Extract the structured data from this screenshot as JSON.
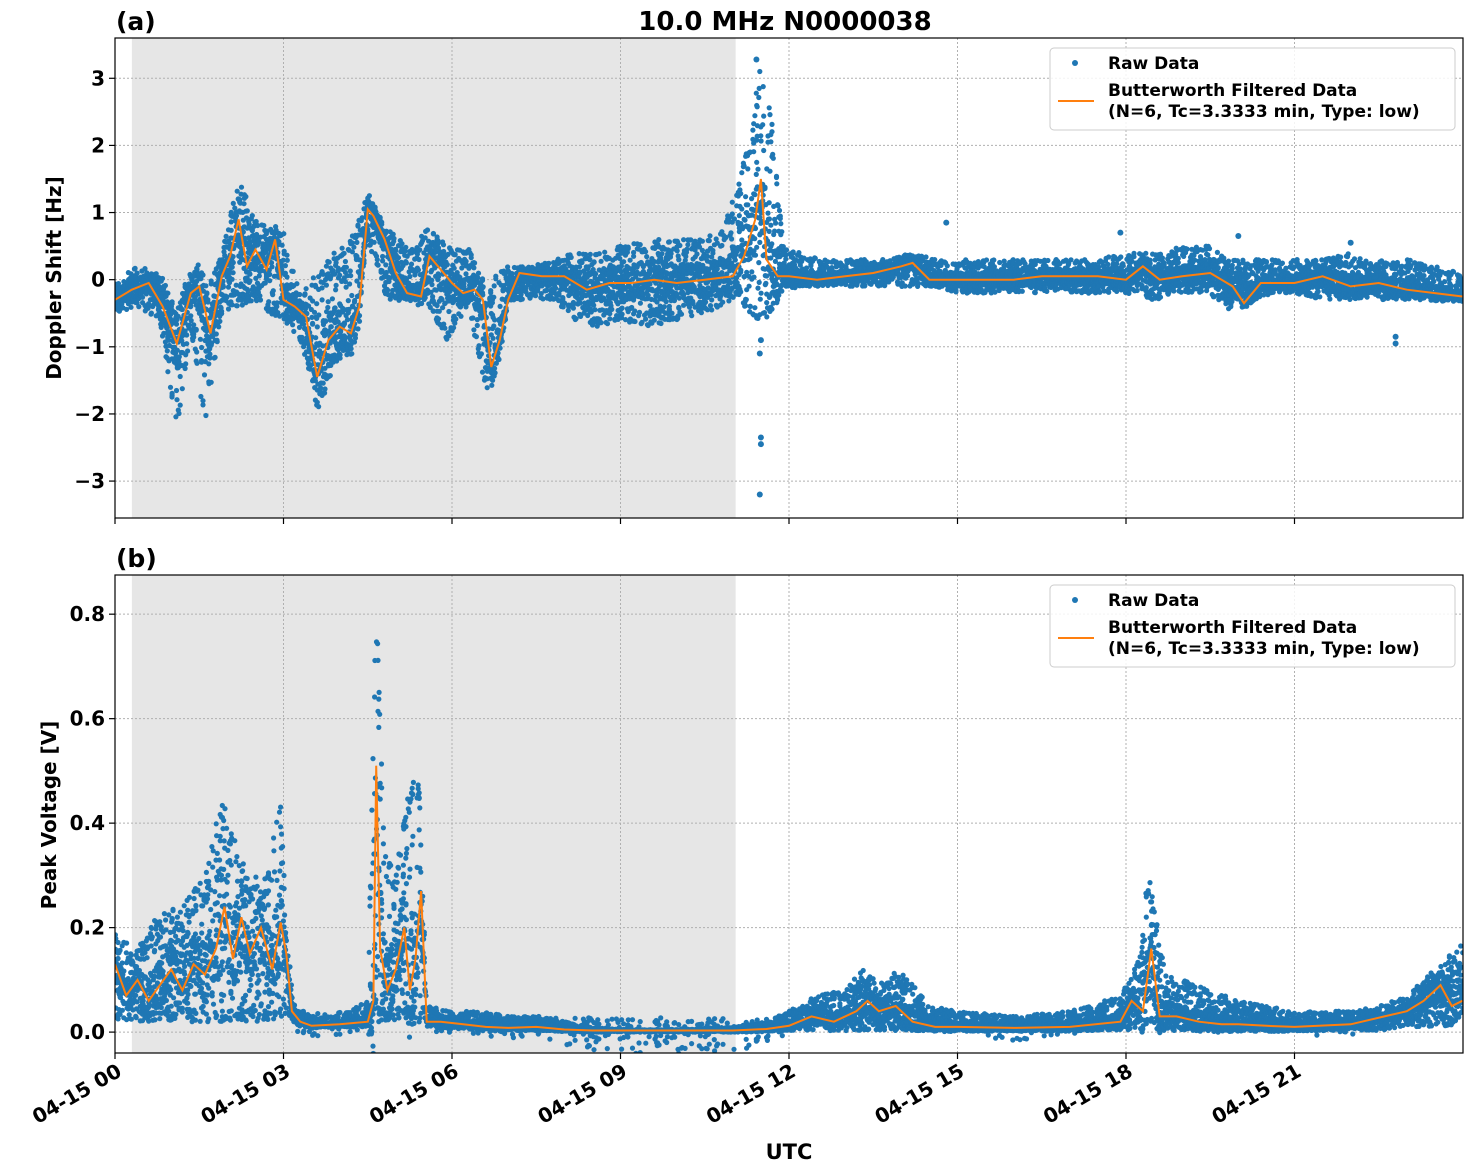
{
  "figure": {
    "title": "10.0 MHz N0000038",
    "xlabel": "UTC",
    "colors": {
      "raw": "#1f77b4",
      "filtered": "#ff7f0e",
      "shade": "#e6e6e6",
      "grid": "#b0b0b0"
    }
  },
  "chart_data": [
    {
      "type": "scatter",
      "panel_label": "(a)",
      "title": "10.0 MHz N0000038",
      "xlabel": "",
      "ylabel": "Doppler Shift [Hz]",
      "xlim": [
        0,
        24
      ],
      "ylim": [
        -3.55,
        3.6
      ],
      "y_ticks": [
        3,
        2,
        1,
        0,
        -1,
        -2,
        -3
      ],
      "y_tick_labels": [
        "3",
        "2",
        "1",
        "0",
        "−1",
        "−2",
        "−3"
      ],
      "grid": true,
      "shaded_interval_hours": [
        0.3,
        11.05
      ],
      "legend": {
        "position": "top-right",
        "entries": [
          "Raw Data",
          "Butterworth Filtered Data",
          "(N=6, Tc=3.3333 min, Type: low)"
        ]
      },
      "series": [
        {
          "name": "Raw Data",
          "kind": "scatter-band",
          "x": [
            0,
            0.4,
            0.8,
            1.1,
            1.35,
            1.6,
            1.9,
            2.2,
            2.5,
            2.7,
            3.0,
            3.3,
            3.6,
            3.9,
            4.2,
            4.5,
            4.8,
            5.0,
            5.3,
            5.6,
            5.9,
            6.3,
            6.6,
            6.8,
            7.0,
            7.4,
            7.8,
            8.2,
            8.6,
            9.0,
            9.5,
            10.0,
            10.5,
            10.8,
            11.1,
            11.3,
            11.5,
            11.7,
            11.9,
            12.2,
            12.6,
            13.0,
            13.4,
            13.8,
            14.2,
            14.6,
            15.0,
            15.5,
            16.0,
            16.5,
            17.0,
            17.5,
            18.0,
            18.5,
            19.0,
            19.5,
            19.8,
            20.0,
            20.3,
            20.6,
            21.0,
            21.5,
            22.0,
            22.5,
            23.0,
            23.5,
            23.99
          ],
          "lower": [
            -0.5,
            -0.4,
            -0.6,
            -2.3,
            -0.7,
            -2.2,
            -0.5,
            -0.4,
            -0.3,
            -0.5,
            -0.6,
            -0.9,
            -2.0,
            -1.3,
            -1.0,
            0.6,
            -0.2,
            -0.4,
            -0.1,
            -0.4,
            -0.9,
            -0.4,
            -1.7,
            -1.2,
            -0.3,
            -0.3,
            -0.3,
            -0.6,
            -0.7,
            -0.6,
            -0.7,
            -0.6,
            -0.5,
            -0.4,
            -0.3,
            -0.5,
            -0.7,
            -0.5,
            -0.2,
            -0.1,
            -0.1,
            -0.1,
            -0.1,
            -0.1,
            -0.1,
            -0.1,
            -0.2,
            -0.2,
            -0.2,
            -0.2,
            -0.2,
            -0.2,
            -0.2,
            -0.3,
            -0.2,
            -0.2,
            -0.5,
            -0.2,
            -0.3,
            -0.2,
            -0.2,
            -0.3,
            -0.3,
            -0.3,
            -0.3,
            -0.3,
            -0.3
          ],
          "upper": [
            0.0,
            0.2,
            0.1,
            -0.4,
            0.2,
            -0.2,
            0.4,
            1.5,
            0.9,
            0.8,
            0.7,
            -0.2,
            0.1,
            0.4,
            0.6,
            1.3,
            0.8,
            0.7,
            0.5,
            0.8,
            0.5,
            0.5,
            -0.2,
            0.1,
            0.2,
            0.2,
            0.3,
            0.4,
            0.4,
            0.5,
            0.6,
            0.6,
            0.6,
            0.8,
            1.5,
            2.2,
            3.3,
            2.3,
            0.5,
            0.4,
            0.3,
            0.3,
            0.3,
            0.3,
            0.4,
            0.3,
            0.3,
            0.3,
            0.3,
            0.3,
            0.3,
            0.3,
            0.4,
            0.4,
            0.5,
            0.5,
            0.3,
            0.3,
            0.3,
            0.3,
            0.3,
            0.3,
            0.4,
            0.3,
            0.3,
            0.2,
            0.1
          ],
          "outliers": [
            [
              11.48,
              -3.2
            ],
            [
              11.5,
              -2.35
            ],
            [
              11.5,
              -2.45
            ],
            [
              11.48,
              -1.1
            ],
            [
              11.5,
              -0.9
            ],
            [
              22.8,
              -0.85
            ],
            [
              22.8,
              -0.95
            ],
            [
              14.8,
              0.85
            ],
            [
              17.9,
              0.7
            ],
            [
              20.0,
              0.65
            ],
            [
              22.0,
              0.55
            ],
            [
              11.42,
              3.28
            ]
          ]
        },
        {
          "name": "Butterworth Filtered Data",
          "kind": "line",
          "x": [
            0,
            0.3,
            0.6,
            0.85,
            1.1,
            1.35,
            1.5,
            1.7,
            1.9,
            2.05,
            2.2,
            2.35,
            2.5,
            2.7,
            2.85,
            3.0,
            3.2,
            3.4,
            3.6,
            3.8,
            4.0,
            4.2,
            4.35,
            4.5,
            4.6,
            4.8,
            5.0,
            5.2,
            5.45,
            5.6,
            5.8,
            6.0,
            6.2,
            6.4,
            6.55,
            6.7,
            6.85,
            7.0,
            7.2,
            7.6,
            8.0,
            8.4,
            8.8,
            9.2,
            9.6,
            10.0,
            10.5,
            11.0,
            11.2,
            11.4,
            11.5,
            11.6,
            11.8,
            12.0,
            12.5,
            13.0,
            13.5,
            14.0,
            14.2,
            14.5,
            15.0,
            15.5,
            16.0,
            16.5,
            17.0,
            17.5,
            18.0,
            18.3,
            18.6,
            19.0,
            19.5,
            19.9,
            20.1,
            20.4,
            21.0,
            21.5,
            22.0,
            22.5,
            23.0,
            23.5,
            23.99
          ],
          "y": [
            -0.3,
            -0.15,
            -0.05,
            -0.4,
            -0.95,
            -0.2,
            -0.1,
            -0.8,
            0.05,
            0.35,
            0.9,
            0.2,
            0.45,
            0.15,
            0.6,
            -0.3,
            -0.4,
            -0.55,
            -1.45,
            -0.9,
            -0.7,
            -0.8,
            -0.4,
            1.05,
            0.95,
            0.6,
            0.1,
            -0.2,
            -0.25,
            0.35,
            0.15,
            -0.05,
            -0.2,
            -0.15,
            -0.3,
            -1.3,
            -0.9,
            -0.3,
            0.1,
            0.05,
            0.05,
            -0.15,
            -0.05,
            -0.05,
            0.0,
            -0.05,
            0.0,
            0.05,
            0.35,
            0.9,
            1.5,
            0.3,
            0.05,
            0.05,
            0.0,
            0.05,
            0.1,
            0.2,
            0.25,
            0.0,
            0.0,
            0.0,
            0.0,
            0.05,
            0.05,
            0.05,
            0.0,
            0.2,
            0.0,
            0.05,
            0.1,
            -0.1,
            -0.35,
            -0.05,
            -0.05,
            0.05,
            -0.1,
            -0.05,
            -0.15,
            -0.2,
            -0.25
          ]
        }
      ]
    },
    {
      "type": "scatter",
      "panel_label": "(b)",
      "xlabel": "UTC",
      "ylabel": "Peak Voltage [V]",
      "xlim": [
        0,
        24
      ],
      "ylim": [
        -0.04,
        0.875
      ],
      "y_ticks": [
        0.8,
        0.6,
        0.4,
        0.2,
        0.0
      ],
      "y_tick_labels": [
        "0.8",
        "0.6",
        "0.4",
        "0.2",
        "0.0"
      ],
      "x_ticks": [
        0,
        3,
        6,
        9,
        12,
        15,
        18,
        21
      ],
      "x_tick_labels": [
        "04-15 00",
        "04-15 03",
        "04-15 06",
        "04-15 09",
        "04-15 12",
        "04-15 15",
        "04-15 18",
        "04-15 21"
      ],
      "grid": true,
      "shaded_interval_hours": [
        0.3,
        11.05
      ],
      "legend": {
        "position": "top-right",
        "entries": [
          "Raw Data",
          "Butterworth Filtered Data",
          "(N=6, Tc=3.3333 min, Type: low)"
        ]
      },
      "series": [
        {
          "name": "Raw Data",
          "kind": "scatter-band",
          "x": [
            0,
            0.4,
            0.8,
            1.2,
            1.6,
            1.9,
            2.1,
            2.4,
            2.7,
            2.95,
            3.05,
            3.2,
            3.5,
            4.0,
            4.5,
            4.65,
            4.8,
            5.0,
            5.2,
            5.4,
            5.55,
            6.0,
            6.5,
            7.0,
            7.5,
            8.0,
            8.5,
            9.0,
            10.0,
            11.0,
            11.6,
            12.0,
            12.5,
            13.0,
            13.3,
            13.6,
            14.0,
            14.5,
            15.0,
            16.0,
            17.0,
            17.9,
            18.2,
            18.4,
            18.7,
            19.0,
            19.5,
            20.0,
            21.0,
            22.0,
            22.5,
            23.0,
            23.5,
            23.99
          ],
          "lower": [
            0.02,
            0.02,
            0.02,
            0.02,
            0.02,
            0.02,
            0.02,
            0.02,
            0.02,
            0.03,
            0.03,
            0.01,
            0.01,
            0.01,
            0.01,
            0.02,
            0.02,
            0.02,
            0.02,
            0.02,
            0.01,
            0.005,
            0.005,
            0.003,
            0.003,
            0.002,
            0.0,
            0.0,
            0.0,
            0.0,
            0.0,
            0.003,
            0.003,
            0.003,
            0.003,
            0.003,
            0.003,
            0.003,
            0.003,
            0.003,
            0.003,
            0.003,
            0.003,
            0.003,
            0.003,
            0.003,
            0.003,
            0.003,
            0.003,
            0.003,
            0.003,
            0.01,
            0.01,
            0.01
          ],
          "upper": [
            0.19,
            0.16,
            0.23,
            0.24,
            0.3,
            0.45,
            0.38,
            0.3,
            0.3,
            0.45,
            0.2,
            0.05,
            0.03,
            0.03,
            0.06,
            0.83,
            0.35,
            0.3,
            0.45,
            0.54,
            0.05,
            0.04,
            0.04,
            0.03,
            0.03,
            0.02,
            0.01,
            0.005,
            0.005,
            0.01,
            0.02,
            0.04,
            0.07,
            0.08,
            0.12,
            0.1,
            0.12,
            0.05,
            0.04,
            0.03,
            0.04,
            0.07,
            0.13,
            0.31,
            0.11,
            0.1,
            0.08,
            0.06,
            0.04,
            0.04,
            0.05,
            0.07,
            0.12,
            0.17
          ]
        },
        {
          "name": "Butterworth Filtered Data",
          "kind": "line",
          "x": [
            0,
            0.2,
            0.4,
            0.6,
            0.8,
            1.0,
            1.2,
            1.4,
            1.6,
            1.8,
            1.95,
            2.1,
            2.25,
            2.4,
            2.6,
            2.8,
            2.95,
            3.05,
            3.15,
            3.3,
            3.5,
            4.0,
            4.5,
            4.6,
            4.65,
            4.72,
            4.85,
            5.0,
            5.15,
            5.25,
            5.35,
            5.45,
            5.55,
            5.8,
            6.2,
            6.6,
            7.0,
            7.5,
            8.0,
            8.5,
            9.0,
            10.0,
            11.0,
            11.6,
            12.0,
            12.4,
            12.8,
            13.2,
            13.4,
            13.6,
            13.9,
            14.2,
            14.6,
            15.0,
            16.0,
            17.0,
            17.9,
            18.1,
            18.3,
            18.45,
            18.6,
            18.9,
            19.3,
            19.7,
            20.0,
            20.5,
            21.0,
            22.0,
            22.6,
            23.0,
            23.3,
            23.6,
            23.8,
            23.99
          ],
          "y": [
            0.13,
            0.07,
            0.1,
            0.06,
            0.09,
            0.12,
            0.08,
            0.13,
            0.11,
            0.16,
            0.24,
            0.14,
            0.22,
            0.15,
            0.2,
            0.12,
            0.21,
            0.15,
            0.04,
            0.02,
            0.012,
            0.015,
            0.02,
            0.06,
            0.51,
            0.16,
            0.08,
            0.12,
            0.2,
            0.08,
            0.14,
            0.27,
            0.02,
            0.02,
            0.015,
            0.01,
            0.008,
            0.01,
            0.005,
            0.003,
            0.003,
            0.003,
            0.003,
            0.006,
            0.012,
            0.03,
            0.02,
            0.04,
            0.06,
            0.04,
            0.05,
            0.02,
            0.01,
            0.01,
            0.008,
            0.01,
            0.02,
            0.06,
            0.04,
            0.16,
            0.03,
            0.03,
            0.02,
            0.015,
            0.015,
            0.012,
            0.01,
            0.015,
            0.03,
            0.04,
            0.06,
            0.09,
            0.05,
            0.06
          ]
        }
      ]
    }
  ]
}
